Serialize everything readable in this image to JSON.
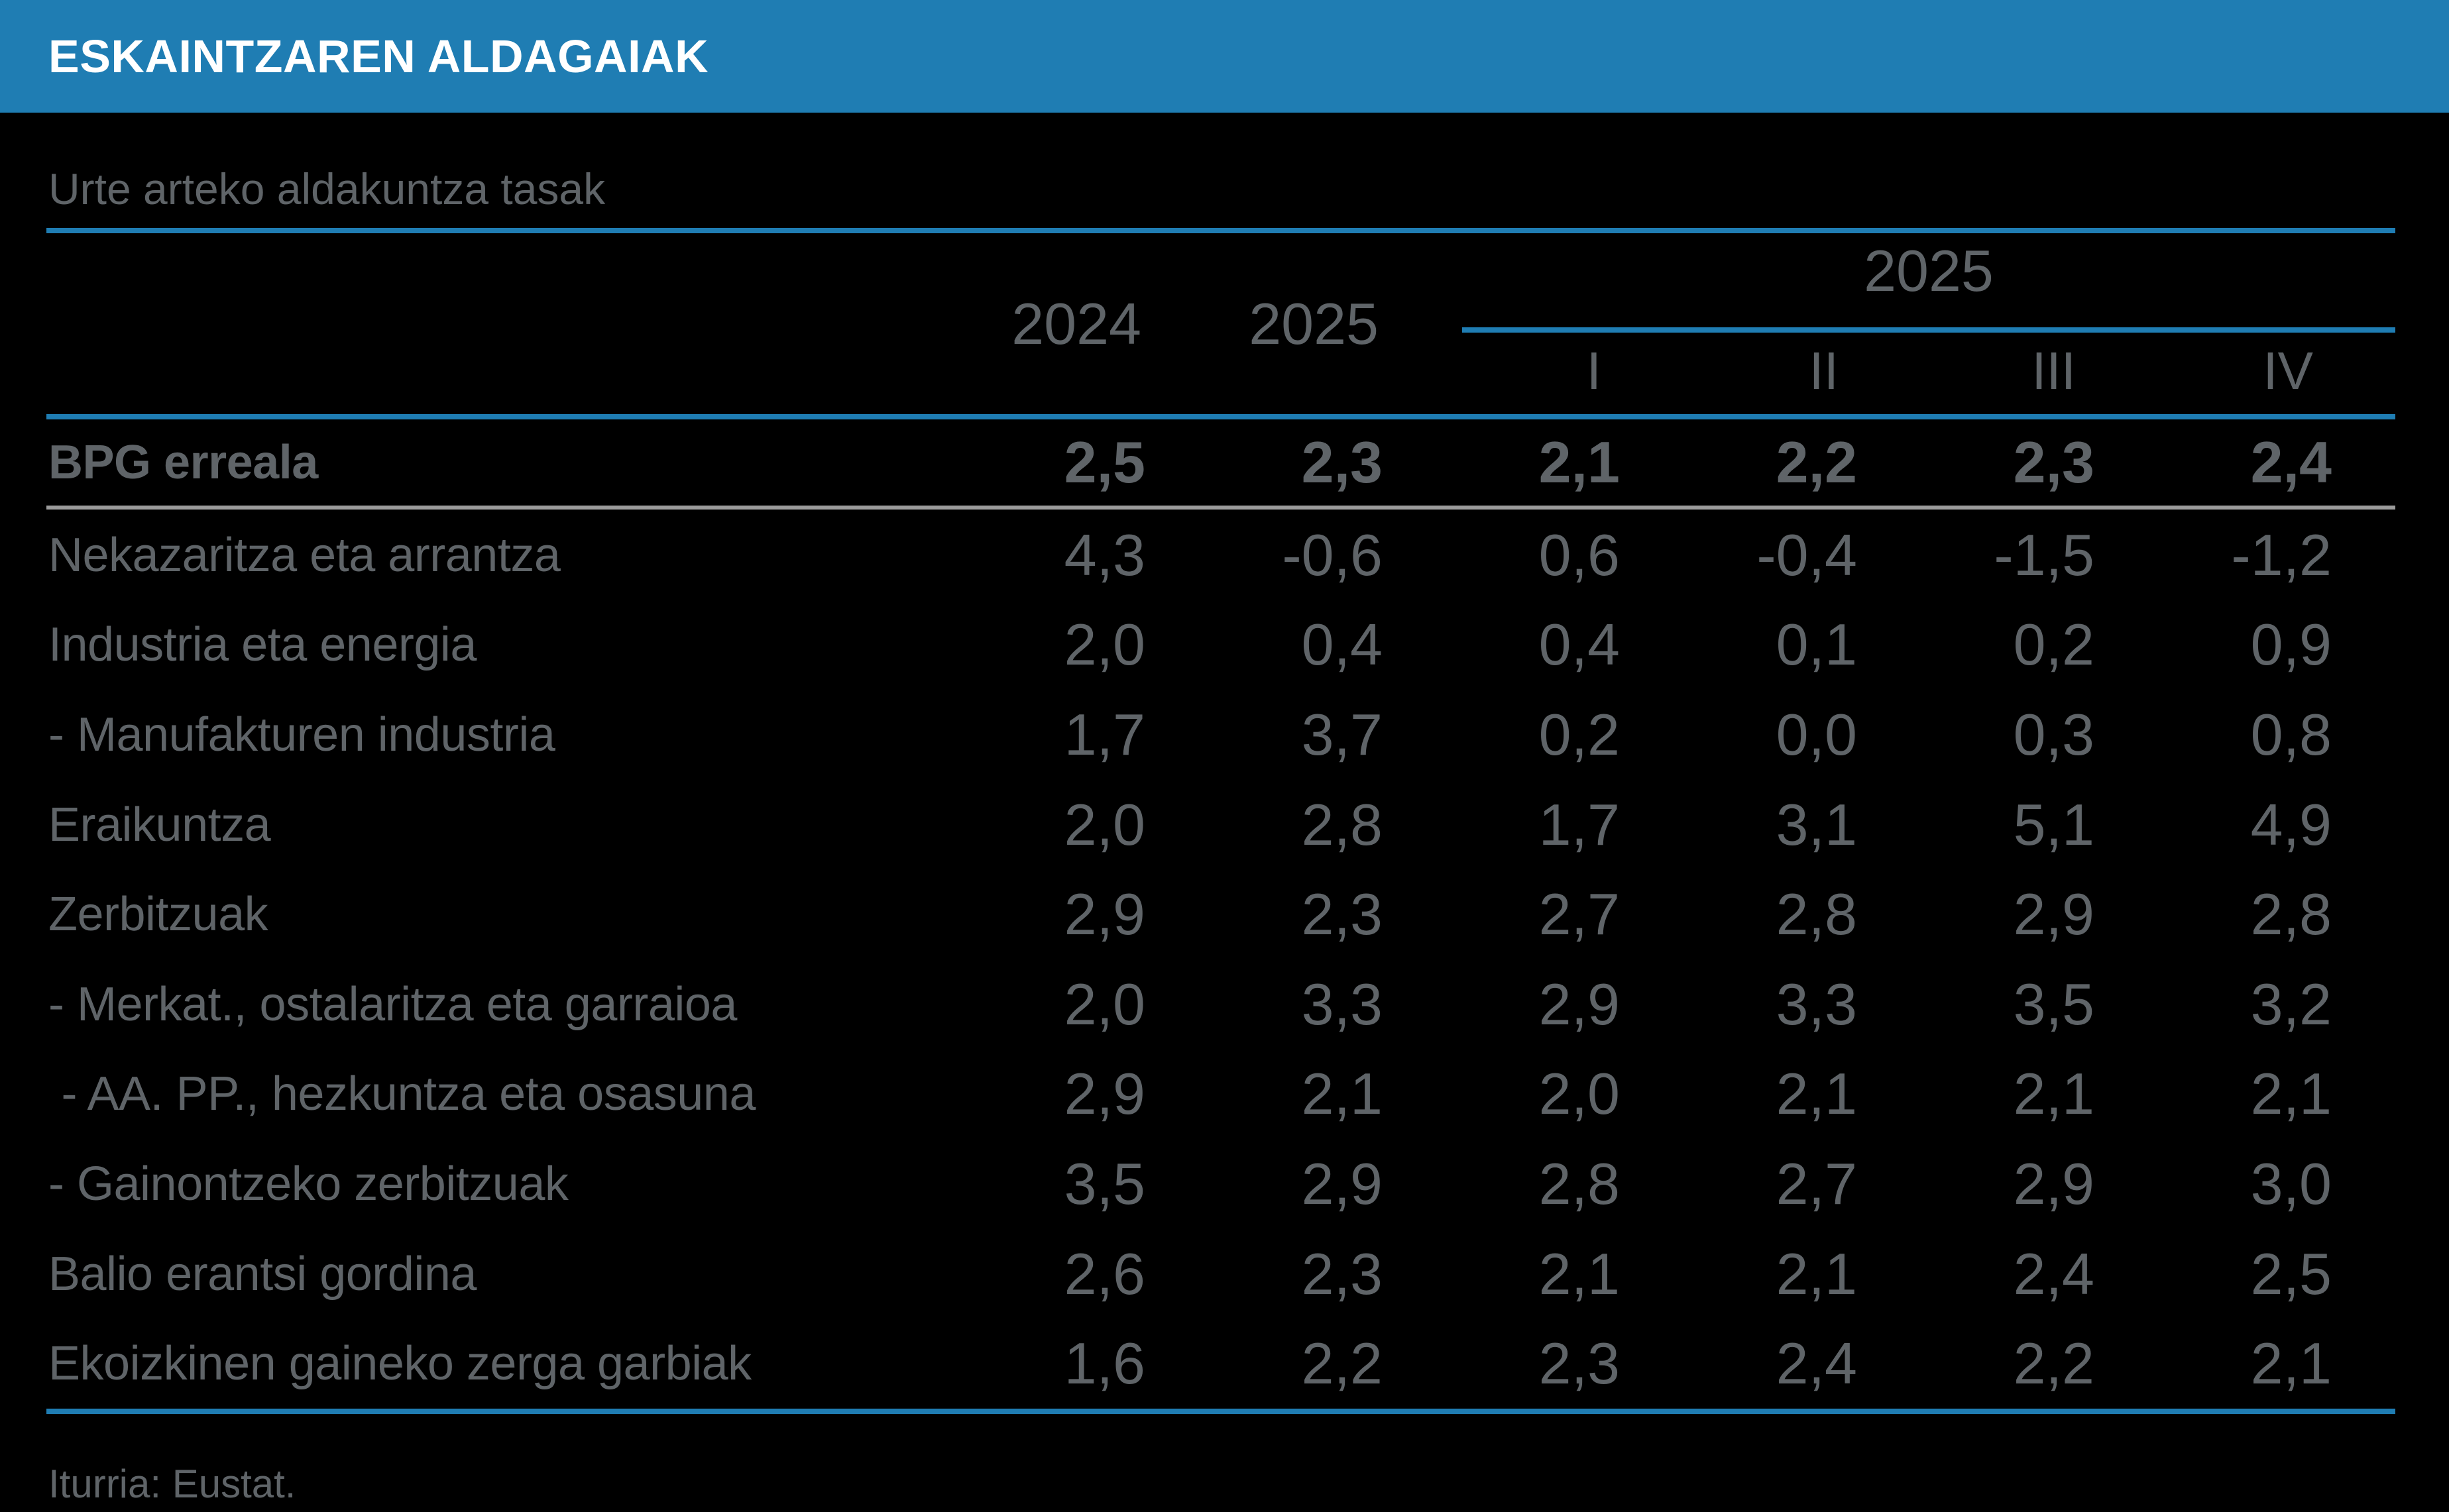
{
  "header_bar": {
    "title": "ESKAINTZAREN ALDAGAIAK"
  },
  "subtitle": "Urte arteko aldakuntza tasak",
  "table": {
    "col_headers": {
      "annual": [
        "2024",
        "2025"
      ],
      "group_label": "2025",
      "quarters": [
        "I",
        "II",
        "III",
        "IV"
      ]
    },
    "rows": [
      {
        "label": "BPG erreala",
        "bold": true,
        "values": [
          "2,5",
          "2,3",
          "2,1",
          "2,2",
          "2,3",
          "2,4"
        ]
      },
      {
        "label": "Nekazaritza eta arrantza",
        "values": [
          "4,3",
          "-0,6",
          "0,6",
          "-0,4",
          "-1,5",
          "-1,2"
        ]
      },
      {
        "label": "Industria eta energia",
        "values": [
          "2,0",
          "0,4",
          "0,4",
          "0,1",
          "0,2",
          "0,9"
        ]
      },
      {
        "label": "- Manufakturen industria",
        "values": [
          "1,7",
          "3,7",
          "0,2",
          "0,0",
          "0,3",
          "0,8"
        ]
      },
      {
        "label": "Eraikuntza",
        "values": [
          "2,0",
          "2,8",
          "1,7",
          "3,1",
          "5,1",
          "4,9"
        ]
      },
      {
        "label": "Zerbitzuak",
        "values": [
          "2,9",
          "2,3",
          "2,7",
          "2,8",
          "2,9",
          "2,8"
        ]
      },
      {
        "label": "- Merkat., ostalaritza eta garraioa",
        "values": [
          "2,0",
          "3,3",
          "2,9",
          "3,3",
          "3,5",
          "3,2"
        ]
      },
      {
        "label": " - AA. PP., hezkuntza eta osasuna",
        "values": [
          "2,9",
          "2,1",
          "2,0",
          "2,1",
          "2,1",
          "2,1"
        ]
      },
      {
        "label": "- Gainontzeko zerbitzuak",
        "values": [
          "3,5",
          "2,9",
          "2,8",
          "2,7",
          "2,9",
          "3,0"
        ]
      },
      {
        "label": "Balio erantsi gordina",
        "values": [
          "2,6",
          "2,3",
          "2,1",
          "2,1",
          "2,4",
          "2,5"
        ]
      },
      {
        "label": "Ekoizkinen gaineko zerga garbiak",
        "values": [
          "1,6",
          "2,2",
          "2,3",
          "2,4",
          "2,2",
          "2,1"
        ]
      }
    ]
  },
  "footer": {
    "source": "Iturria: Eustat."
  },
  "colors": {
    "accent_blue": "#1f7db3",
    "text_gray": "#5f6468",
    "divider_gray": "#9b9b9b",
    "background": "#000000",
    "bar_text": "#ffffff"
  },
  "chart_data": {
    "type": "table",
    "title": "ESKAINTZAREN ALDAGAIAK",
    "subtitle": "Urte arteko aldakuntza tasak",
    "columns": [
      "2024",
      "2025",
      "2025 I",
      "2025 II",
      "2025 III",
      "2025 IV"
    ],
    "rows": [
      {
        "label": "BPG erreala",
        "values": [
          2.5,
          2.3,
          2.1,
          2.2,
          2.3,
          2.4
        ]
      },
      {
        "label": "Nekazaritza eta arrantza",
        "values": [
          4.3,
          -0.6,
          0.6,
          -0.4,
          -1.5,
          -1.2
        ]
      },
      {
        "label": "Industria eta energia",
        "values": [
          2.0,
          0.4,
          0.4,
          0.1,
          0.2,
          0.9
        ]
      },
      {
        "label": "- Manufakturen industria",
        "values": [
          1.7,
          3.7,
          0.2,
          0.0,
          0.3,
          0.8
        ]
      },
      {
        "label": "Eraikuntza",
        "values": [
          2.0,
          2.8,
          1.7,
          3.1,
          5.1,
          4.9
        ]
      },
      {
        "label": "Zerbitzuak",
        "values": [
          2.9,
          2.3,
          2.7,
          2.8,
          2.9,
          2.8
        ]
      },
      {
        "label": "- Merkat., ostalaritza eta garraioa",
        "values": [
          2.0,
          3.3,
          2.9,
          3.3,
          3.5,
          3.2
        ]
      },
      {
        "label": "- AA. PP., hezkuntza eta osasuna",
        "values": [
          2.9,
          2.1,
          2.0,
          2.1,
          2.1,
          2.1
        ]
      },
      {
        "label": "- Gainontzeko zerbitzuak",
        "values": [
          3.5,
          2.9,
          2.8,
          2.7,
          2.9,
          3.0
        ]
      },
      {
        "label": "Balio erantsi gordina",
        "values": [
          2.6,
          2.3,
          2.1,
          2.1,
          2.4,
          2.5
        ]
      },
      {
        "label": "Ekoizkinen gaineko zerga garbiak",
        "values": [
          1.6,
          2.2,
          2.3,
          2.4,
          2.2,
          2.1
        ]
      }
    ],
    "source": "Iturria: Eustat."
  }
}
